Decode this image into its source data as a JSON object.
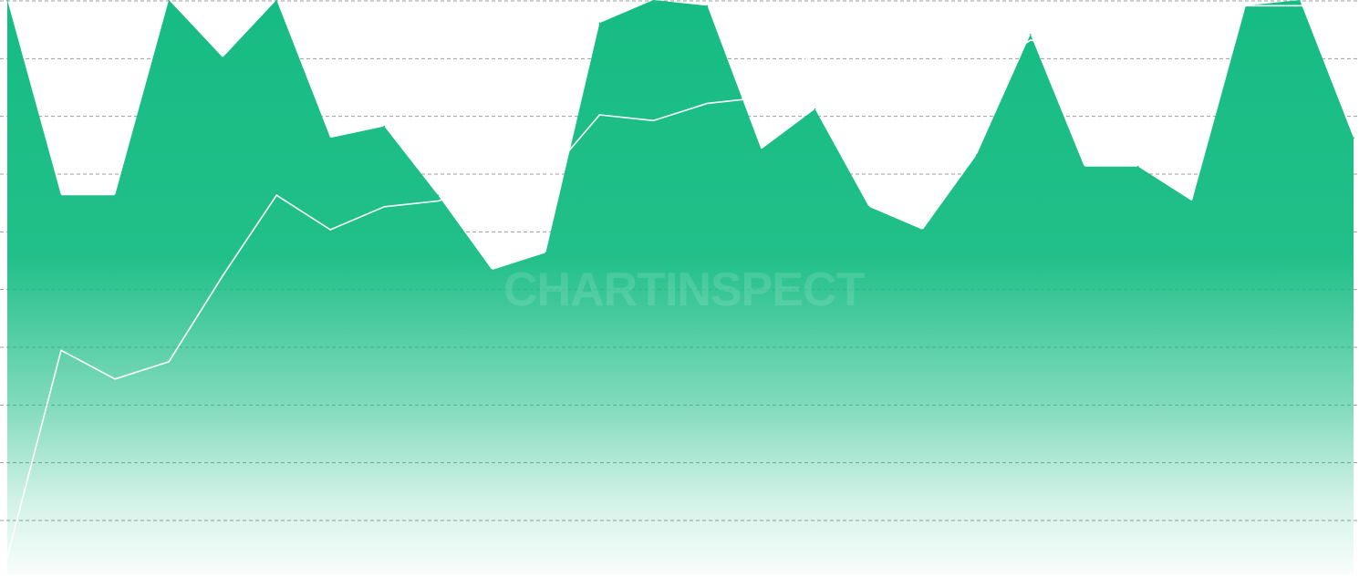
{
  "watermark": "CHARTINSPECT",
  "colors": {
    "area": "#16bc83",
    "price_line": "#ffffff",
    "grid": "#9e9e9e",
    "background": "#ffffff"
  },
  "chart_data": {
    "type": "area",
    "title": "",
    "xlabel": "",
    "ylabel": "",
    "grid": true,
    "legend": "none",
    "gridline_count": 10,
    "y_axis_max": 100,
    "y2_axis_max": 100,
    "x": [
      0,
      4,
      8,
      12,
      16,
      20,
      24,
      28,
      32,
      36,
      40,
      44,
      48,
      52,
      56,
      60,
      64,
      68,
      72,
      76,
      80,
      84,
      88,
      92,
      96,
      100
    ],
    "series": [
      {
        "kind": "area",
        "values": [
          100,
          66,
          66,
          100,
          90,
          100,
          76,
          78,
          66,
          53,
          56,
          96,
          100,
          99,
          74,
          81,
          64,
          60,
          73,
          94,
          71,
          71,
          65,
          99,
          100,
          76
        ]
      },
      {
        "kind": "line",
        "values": [
          3,
          39,
          34,
          37,
          52,
          66,
          60,
          64,
          65,
          68,
          69,
          80,
          79,
          82,
          83,
          91,
          90,
          92,
          87,
          93,
          92,
          97,
          98,
          99,
          99,
          99
        ]
      }
    ]
  }
}
